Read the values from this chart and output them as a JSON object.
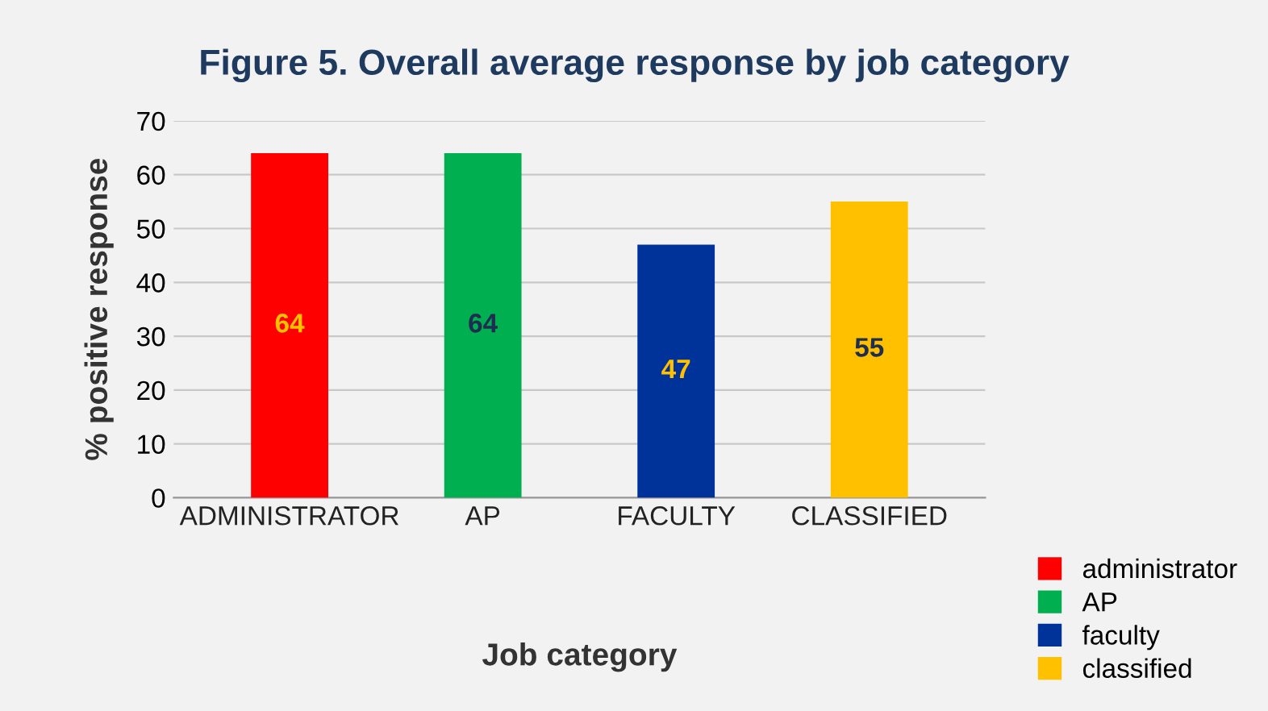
{
  "chart_data": {
    "type": "bar",
    "title": "Figure 5. Overall average response by job category",
    "xlabel": "Job category",
    "ylabel": "% positive response",
    "categories": [
      "ADMINISTRATOR",
      "AP",
      "FACULTY",
      "CLASSIFIED"
    ],
    "series": [
      {
        "name": "administrator",
        "color": "#ff0000",
        "values": [
          64,
          null,
          null,
          null
        ]
      },
      {
        "name": "AP",
        "color": "#00b050",
        "values": [
          null,
          64,
          null,
          null
        ]
      },
      {
        "name": "faculty",
        "color": "#003399",
        "values": [
          null,
          null,
          47,
          null
        ]
      },
      {
        "name": "classified",
        "color": "#ffc000",
        "values": [
          null,
          null,
          null,
          55
        ]
      }
    ],
    "ylim": [
      0,
      70
    ],
    "yticks": [
      0,
      10,
      20,
      30,
      40,
      50,
      60,
      70
    ],
    "grid": "y",
    "legend": "bottom right",
    "data_labels": true
  }
}
